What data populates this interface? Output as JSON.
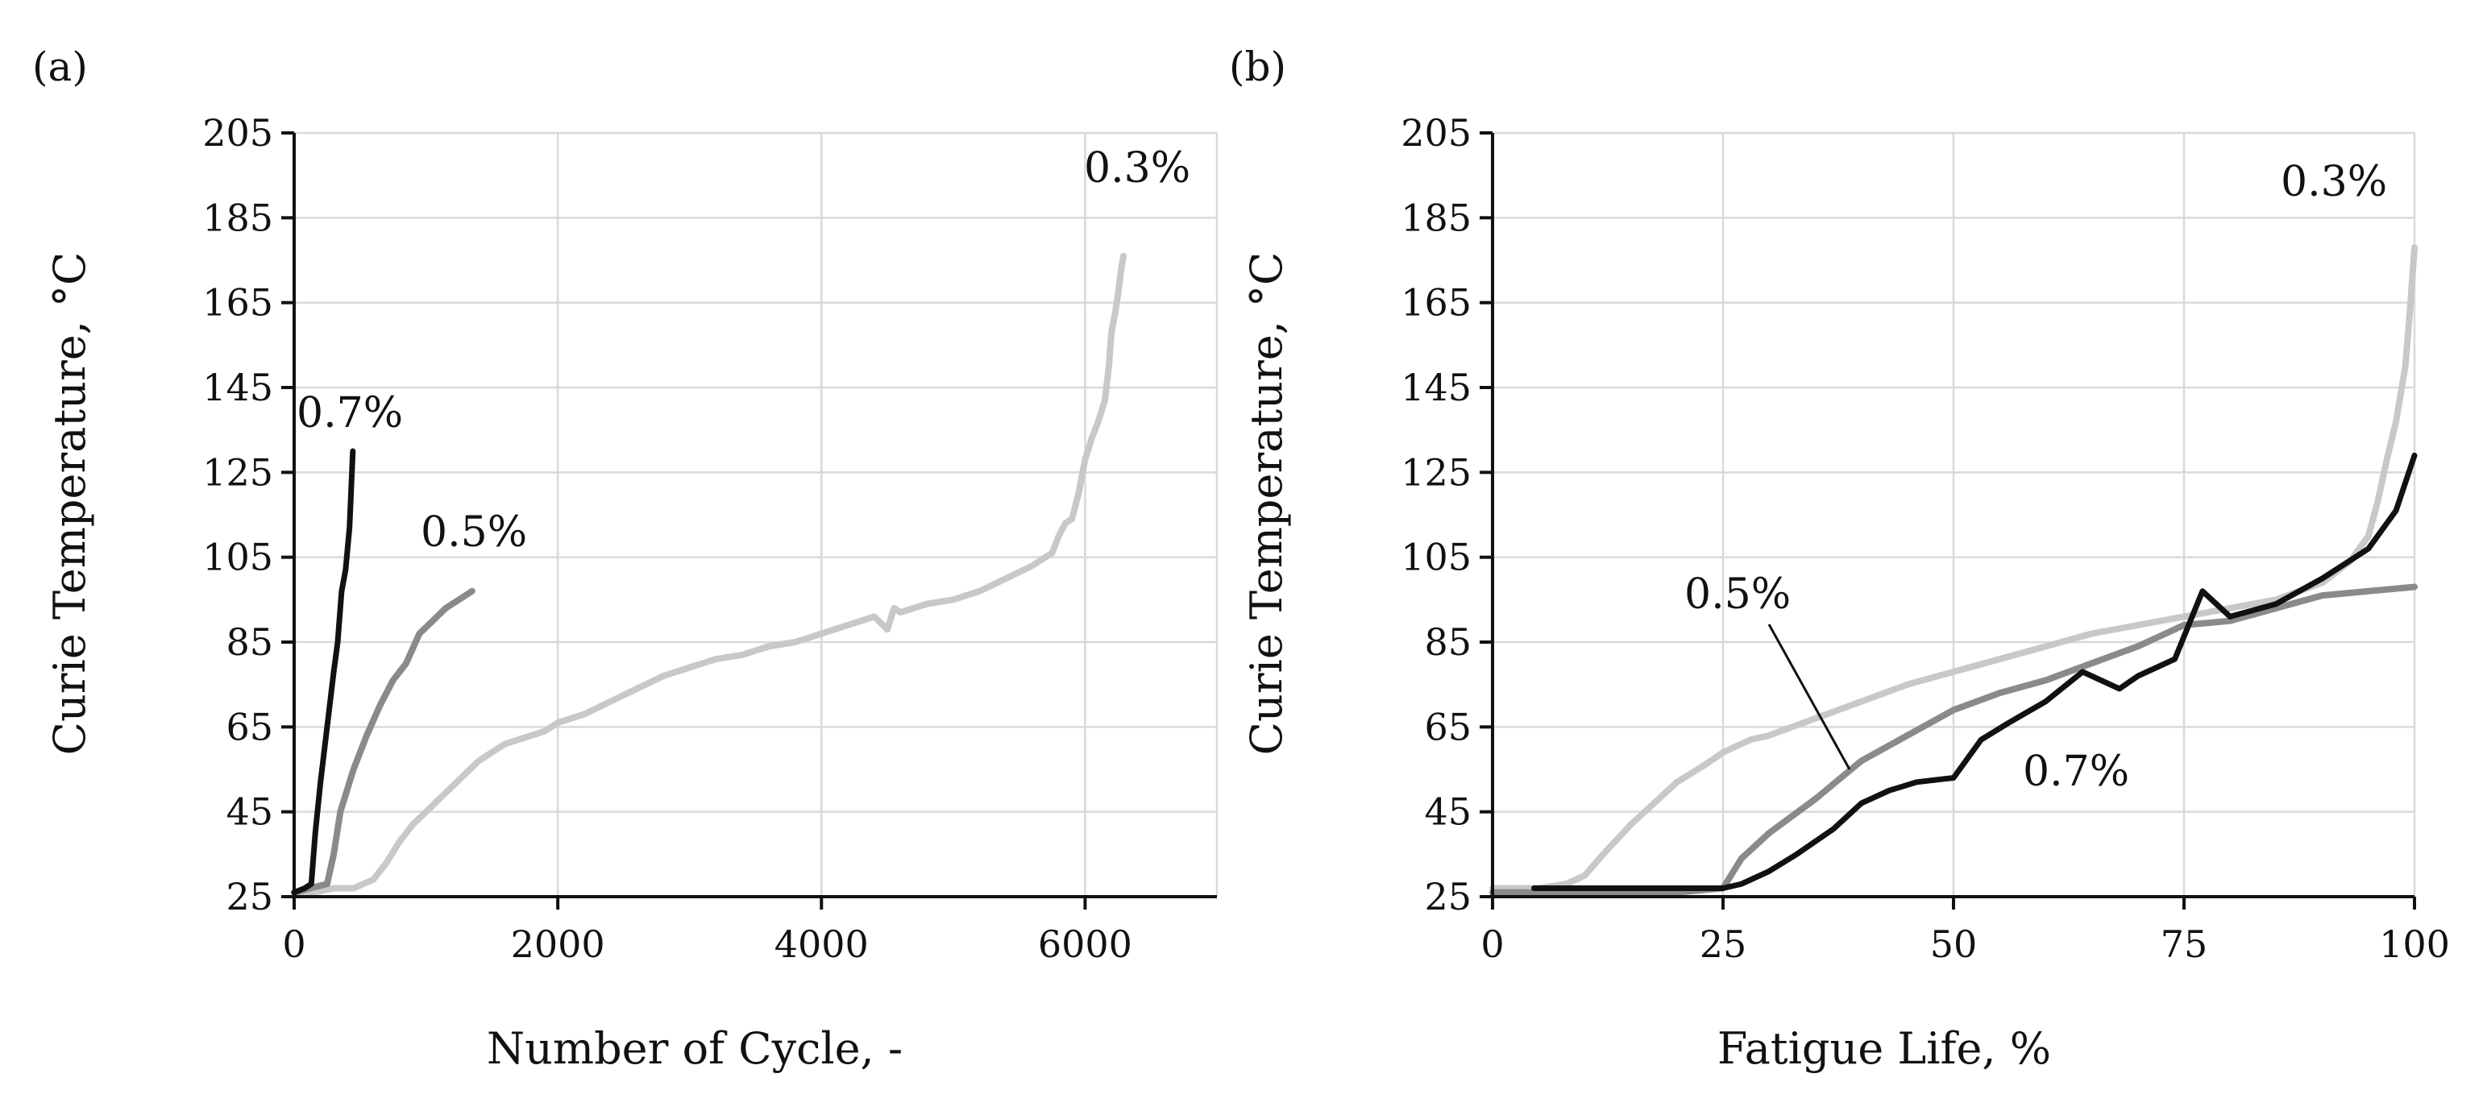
{
  "chart_data": [
    {
      "panel_label": "(a)",
      "type": "line",
      "title": "",
      "xlabel": "Number of Cycle, -",
      "ylabel": "Curie Temperature, °C",
      "xlim": [
        0,
        7000
      ],
      "ylim": [
        25,
        205
      ],
      "xticks": [
        0,
        2000,
        4000,
        6000
      ],
      "xtick_labels": [
        "0",
        "2000",
        "4000",
        "6000"
      ],
      "yticks": [
        25,
        45,
        65,
        85,
        105,
        125,
        145,
        165,
        185,
        205
      ],
      "ytick_labels": [
        "25",
        "45",
        "65",
        "85",
        "105",
        "125",
        "145",
        "165",
        "185",
        "205"
      ],
      "grid": true,
      "series": [
        {
          "name": "0.3%",
          "color": "#c8c8c8",
          "x": [
            0,
            150,
            300,
            450,
            600,
            700,
            800,
            900,
            1000,
            1100,
            1200,
            1300,
            1400,
            1500,
            1600,
            1700,
            1800,
            1900,
            2000,
            2200,
            2400,
            2600,
            2800,
            3000,
            3200,
            3400,
            3600,
            3800,
            4000,
            4200,
            4400,
            4500,
            4550,
            4600,
            4800,
            5000,
            5200,
            5400,
            5600,
            5750,
            5800,
            5850,
            5900,
            5950,
            6000,
            6050,
            6100,
            6150,
            6180,
            6200,
            6230,
            6250,
            6270,
            6290
          ],
          "values": [
            26,
            26,
            27,
            27,
            29,
            33,
            38,
            42,
            45,
            48,
            51,
            54,
            57,
            59,
            61,
            62,
            63,
            64,
            66,
            68,
            71,
            74,
            77,
            79,
            81,
            82,
            84,
            85,
            87,
            89,
            91,
            88,
            93,
            92,
            94,
            95,
            97,
            100,
            103,
            106,
            110,
            113,
            114,
            120,
            128,
            133,
            137,
            142,
            150,
            158,
            163,
            167,
            172,
            176
          ]
        },
        {
          "name": "0.5%",
          "color": "#8a8a8a",
          "x": [
            0,
            120,
            250,
            300,
            350,
            450,
            550,
            650,
            750,
            850,
            950,
            1050,
            1150,
            1250,
            1350
          ],
          "values": [
            26,
            27,
            28,
            35,
            45,
            55,
            63,
            70,
            76,
            80,
            87,
            90,
            93,
            95,
            97
          ]
        },
        {
          "name": "0.7%",
          "color": "#111111",
          "x": [
            0,
            80,
            130,
            160,
            200,
            250,
            300,
            330,
            360,
            390,
            420,
            445
          ],
          "values": [
            26,
            27,
            28,
            40,
            52,
            65,
            78,
            85,
            97,
            102,
            112,
            130
          ]
        }
      ]
    },
    {
      "panel_label": "(b)",
      "type": "line",
      "title": "",
      "xlabel": "Fatigue Life, %",
      "ylabel": "Curie Temperature, °C",
      "xlim": [
        0,
        100
      ],
      "ylim": [
        25,
        205
      ],
      "xticks": [
        0,
        25,
        50,
        75,
        100
      ],
      "xtick_labels": [
        "0",
        "25",
        "50",
        "75",
        "100"
      ],
      "yticks": [
        25,
        45,
        65,
        85,
        105,
        125,
        145,
        165,
        185,
        205
      ],
      "ytick_labels": [
        "25",
        "45",
        "65",
        "85",
        "105",
        "125",
        "145",
        "165",
        "185",
        "205"
      ],
      "grid": true,
      "series": [
        {
          "name": "0.3%",
          "color": "#c8c8c8",
          "x": [
            0,
            5,
            8,
            10,
            12,
            15,
            18,
            20,
            23,
            25,
            28,
            30,
            35,
            40,
            45,
            50,
            55,
            60,
            65,
            70,
            75,
            80,
            85,
            90,
            93,
            95,
            96,
            97,
            98,
            99,
            99.5,
            100
          ],
          "values": [
            27,
            27,
            28,
            30,
            35,
            42,
            48,
            52,
            56,
            59,
            62,
            63,
            67,
            71,
            75,
            78,
            81,
            84,
            87,
            89,
            91,
            93,
            95,
            99,
            104,
            110,
            118,
            128,
            137,
            150,
            163,
            178
          ]
        },
        {
          "name": "0.5%",
          "color": "#8a8a8a",
          "x": [
            0,
            10,
            20,
            25,
            27,
            30,
            35,
            40,
            45,
            50,
            55,
            60,
            65,
            70,
            75,
            80,
            85,
            90,
            95,
            100
          ],
          "values": [
            26,
            26,
            26,
            27,
            34,
            40,
            48,
            57,
            63,
            69,
            73,
            76,
            80,
            84,
            89,
            90,
            93,
            96,
            97,
            98
          ]
        },
        {
          "name": "0.7%",
          "color": "#111111",
          "x": [
            4.5,
            10,
            18,
            22,
            25,
            27,
            30,
            33,
            37,
            40,
            43,
            46,
            50,
            53,
            56,
            60,
            64,
            68,
            70,
            74,
            77,
            80,
            85,
            90,
            95,
            98,
            100
          ],
          "values": [
            27,
            27,
            27,
            27,
            27,
            28,
            31,
            35,
            41,
            47,
            50,
            52,
            53,
            62,
            66,
            71,
            78,
            74,
            77,
            81,
            97,
            91,
            94,
            100,
            107,
            116,
            129
          ]
        }
      ]
    }
  ],
  "annotations": {
    "panel_a": {
      "label_03": "0.3%",
      "label_05": "0.5%",
      "label_07": "0.7%"
    },
    "panel_b": {
      "label_03": "0.3%",
      "label_05": "0.5%",
      "label_07": "0.7%"
    }
  }
}
